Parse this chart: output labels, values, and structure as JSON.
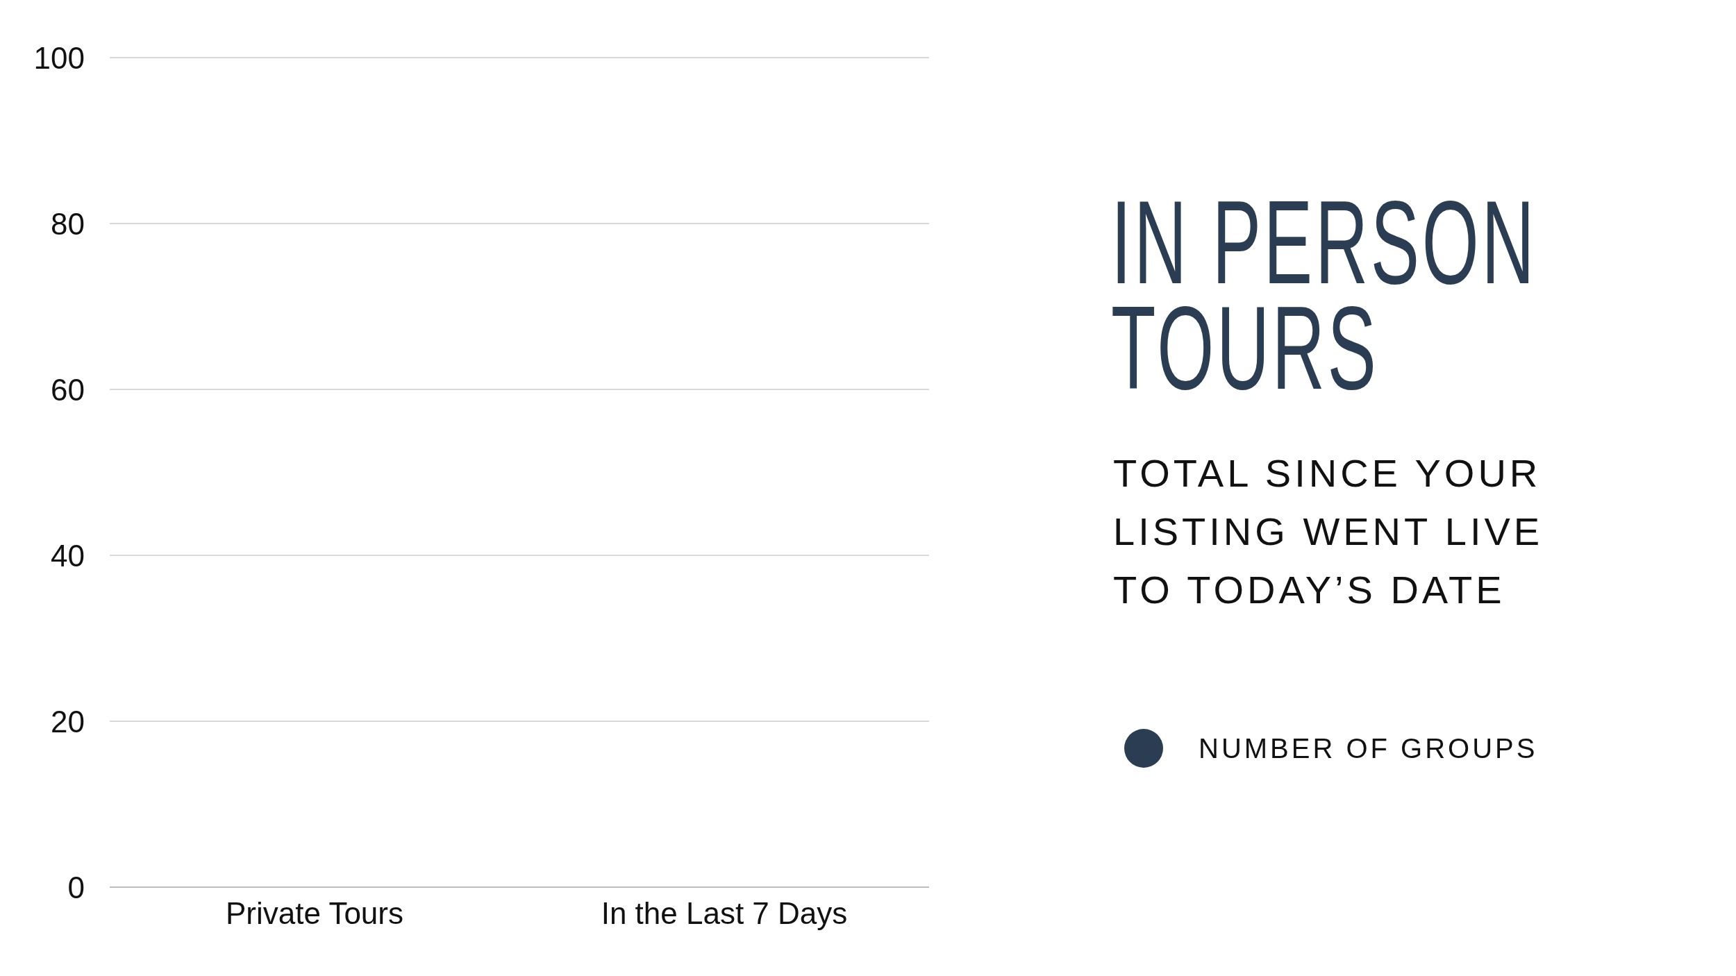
{
  "chart_data": {
    "type": "bar",
    "title": "IN PERSON TOURS",
    "subtitle": "TOTAL SINCE YOUR LISTING WENT LIVE TO TODAY’S DATE",
    "categories": [
      "Private Tours",
      "In the Last 7 Days"
    ],
    "series": [
      {
        "name": "NUMBER OF GROUPS",
        "color": "#2b3d52",
        "values": [
          0,
          0
        ]
      }
    ],
    "ylim": [
      0,
      100
    ],
    "yticks": [
      0,
      20,
      40,
      60,
      80,
      100
    ],
    "grid": "y",
    "legend": "right"
  }
}
